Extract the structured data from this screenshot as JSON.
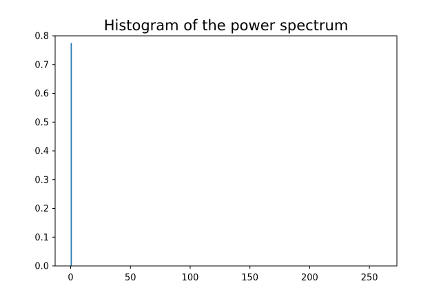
{
  "chart_data": {
    "type": "bar",
    "title": "Histogram of the power spectrum",
    "xlabel": "",
    "ylabel": "",
    "xlim": [
      -13,
      273
    ],
    "ylim": [
      0,
      0.8
    ],
    "x": [
      0.5
    ],
    "values": [
      0.775
    ],
    "bar_width": 1,
    "bar_color": "#1f77b4",
    "xticks": [
      0,
      50,
      100,
      150,
      200,
      250
    ],
    "xtick_labels": [
      "0",
      "50",
      "100",
      "150",
      "200",
      "250"
    ],
    "yticks": [
      0,
      0.1,
      0.2,
      0.3,
      0.4,
      0.5,
      0.6,
      0.7,
      0.8
    ],
    "ytick_labels": [
      "0.0",
      "0.1",
      "0.2",
      "0.3",
      "0.4",
      "0.5",
      "0.6",
      "0.7",
      "0.8"
    ],
    "grid": false,
    "legend": "none"
  }
}
